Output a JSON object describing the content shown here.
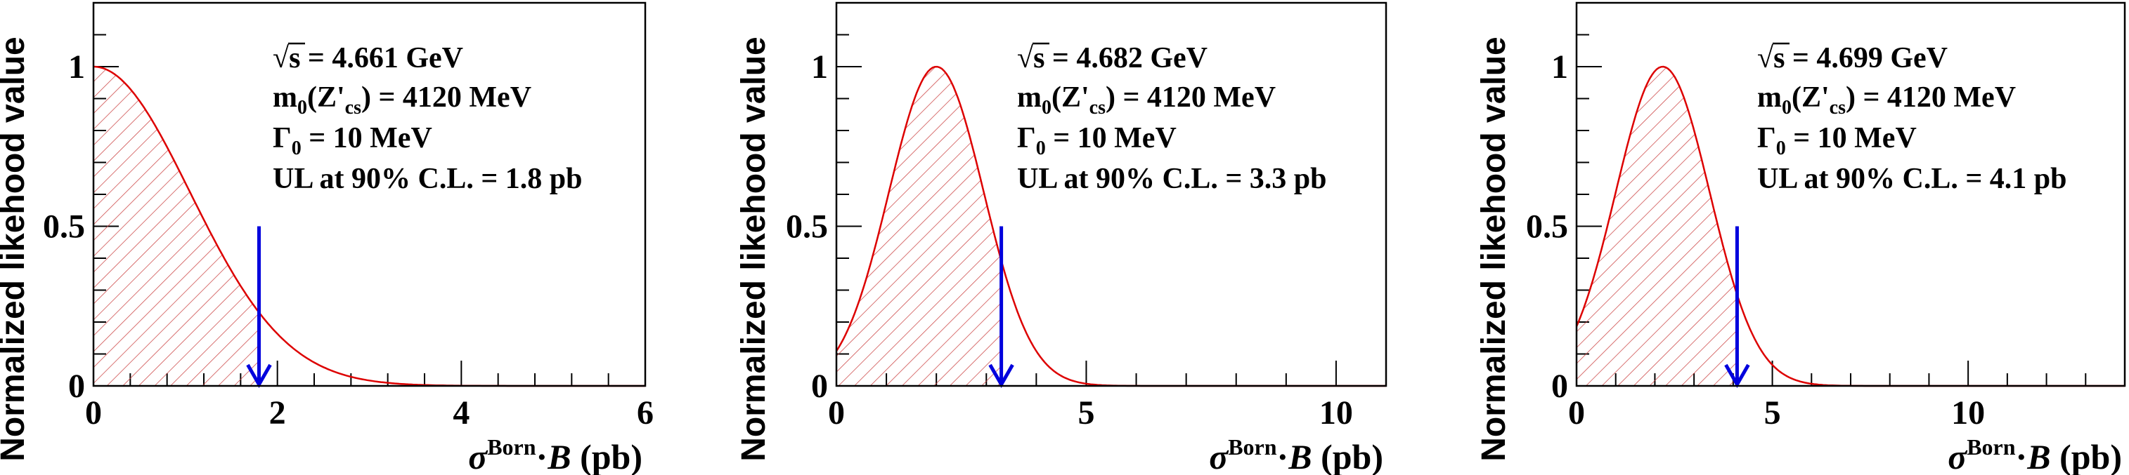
{
  "chart_data": [
    {
      "type": "area",
      "xlabel": {
        "symbol": "σ",
        "sup": "Born",
        "dot": "·",
        "B": "B",
        "unit": " (pb)"
      },
      "ylabel": "Normalized likehood value",
      "xlim": [
        0,
        6
      ],
      "ylim": [
        0,
        1.2
      ],
      "x_major_ticks": [
        0,
        2,
        4,
        6
      ],
      "x_minor_step": 0.4,
      "y_major_ticks": [
        0,
        0.5,
        1
      ],
      "y_minor_step": 0.1,
      "x_tick_labels": [
        "0",
        "2",
        "4",
        "6"
      ],
      "y_tick_labels": [
        "0",
        "0.5",
        "1"
      ],
      "curve": {
        "mean": 0.0,
        "sigma": 1.05,
        "y_at_zero": 1.0
      },
      "upper_limit": 1.8,
      "arrow_from_y": 0.5,
      "annotation": {
        "sqrt": "√",
        "s_line": "s = 4.661 GeV",
        "m_pre": "m",
        "m_sub": "0",
        "m_mid": "(Z'",
        "m_sub2": "cs",
        "m_post": ") = 4120 MeV",
        "g_pre": "Γ",
        "g_sub": "0",
        "g_post": " = 10 MeV",
        "ul": "UL at 90% C.L. = 1.8 pb"
      },
      "colors": {
        "curve": "#dd0000",
        "hatch": "#cc4444",
        "arrow": "#0000dd",
        "axis": "#000000"
      }
    },
    {
      "type": "area",
      "xlabel": {
        "symbol": "σ",
        "sup": "Born",
        "dot": "·",
        "B": "B",
        "unit": " (pb)"
      },
      "ylabel": "Normalized likehood value",
      "xlim": [
        0,
        11
      ],
      "ylim": [
        0,
        1.2
      ],
      "x_major_ticks": [
        0,
        5,
        10
      ],
      "x_minor_step": 1,
      "y_major_ticks": [
        0,
        0.5,
        1
      ],
      "y_minor_step": 0.1,
      "x_tick_labels": [
        "0",
        "5",
        "10"
      ],
      "y_tick_labels": [
        "0",
        "0.5",
        "1"
      ],
      "curve": {
        "mean": 2.0,
        "sigma": 0.95,
        "y_at_zero": 0.05
      },
      "upper_limit": 3.3,
      "arrow_from_y": 0.5,
      "annotation": {
        "sqrt": "√",
        "s_line": "s = 4.682 GeV",
        "m_pre": "m",
        "m_sub": "0",
        "m_mid": "(Z'",
        "m_sub2": "cs",
        "m_post": ") = 4120 MeV",
        "g_pre": "Γ",
        "g_sub": "0",
        "g_post": " = 10 MeV",
        "ul": "UL at 90% C.L. = 3.3 pb"
      },
      "colors": {
        "curve": "#dd0000",
        "hatch": "#cc4444",
        "arrow": "#0000dd",
        "axis": "#000000"
      }
    },
    {
      "type": "area",
      "xlabel": {
        "symbol": "σ",
        "sup": "Born",
        "dot": "·",
        "B": "B",
        "unit": " (pb)"
      },
      "ylabel": "Normalized likehood value",
      "xlim": [
        0,
        14
      ],
      "ylim": [
        0,
        1.2
      ],
      "x_major_ticks": [
        0,
        5,
        10
      ],
      "x_minor_step": 1,
      "y_major_ticks": [
        0,
        0.5,
        1
      ],
      "y_minor_step": 0.1,
      "x_tick_labels": [
        "0",
        "5",
        "10"
      ],
      "y_tick_labels": [
        "0",
        "0.5",
        "1"
      ],
      "curve": {
        "mean": 2.2,
        "sigma": 1.2,
        "y_at_zero": 0.18
      },
      "upper_limit": 4.1,
      "arrow_from_y": 0.5,
      "annotation": {
        "sqrt": "√",
        "s_line": "s = 4.699 GeV",
        "m_pre": "m",
        "m_sub": "0",
        "m_mid": "(Z'",
        "m_sub2": "cs",
        "m_post": ") = 4120 MeV",
        "g_pre": "Γ",
        "g_sub": "0",
        "g_post": " = 10 MeV",
        "ul": "UL at 90% C.L. = 4.1 pb"
      },
      "colors": {
        "curve": "#dd0000",
        "hatch": "#cc4444",
        "arrow": "#0000dd",
        "axis": "#000000"
      }
    }
  ]
}
